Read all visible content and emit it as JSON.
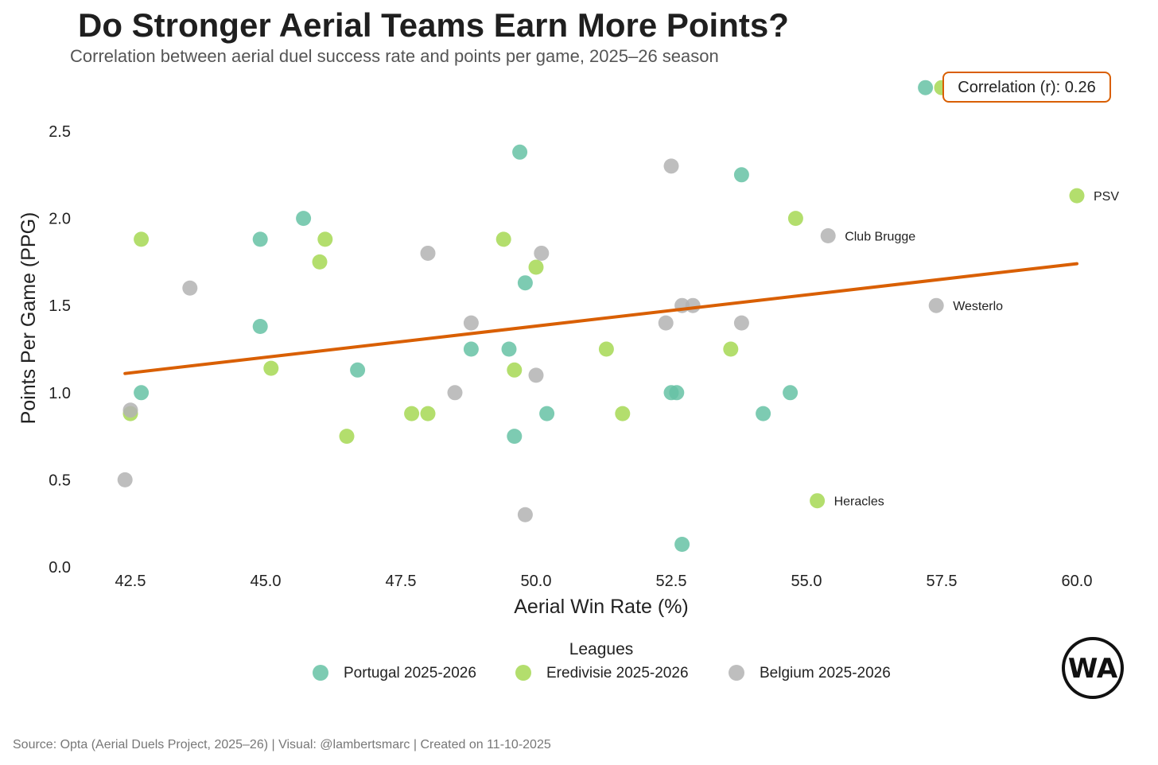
{
  "title": "Do Stronger Aerial Teams Earn More Points?",
  "subtitle": "Correlation between aerial duel success rate and points per game, 2025–26 season",
  "source": "Source: Opta (Aerial Duels Project, 2025–26) | Visual: @lambertsmarc | Created on 11-10-2025",
  "logo_text": "WA",
  "colors": {
    "portugal": "#66c2a5",
    "eredivisie": "#a6d854",
    "belgium": "#b3b3b3",
    "trend": "#d95f02",
    "annotation_border": "#d95f02"
  },
  "chart_data": {
    "type": "scatter",
    "xlabel": "Aerial Win Rate (%)",
    "ylabel": "Points Per Game (PPG)",
    "xlim": [
      41.5,
      60.8
    ],
    "ylim": [
      0.0,
      2.85
    ],
    "xticks": [
      "42.5",
      "45.0",
      "47.5",
      "50.0",
      "52.5",
      "55.0",
      "57.5",
      "60.0"
    ],
    "yticks": [
      "0.0",
      "0.5",
      "1.0",
      "1.5",
      "2.0",
      "2.5"
    ],
    "grid": false,
    "legend": {
      "title": "Leagues",
      "position": "bottom-center"
    },
    "annotation": "Correlation (r): 0.26",
    "trendline": {
      "x": [
        42.4,
        60.0
      ],
      "y": [
        1.11,
        1.74
      ]
    },
    "series": [
      {
        "name": "Portugal 2025-2026",
        "color": "#66c2a5",
        "points": [
          {
            "x": 42.7,
            "y": 1.0
          },
          {
            "x": 44.9,
            "y": 1.88
          },
          {
            "x": 44.9,
            "y": 1.38
          },
          {
            "x": 45.7,
            "y": 2.0
          },
          {
            "x": 46.7,
            "y": 1.13
          },
          {
            "x": 48.8,
            "y": 1.25
          },
          {
            "x": 49.5,
            "y": 1.25
          },
          {
            "x": 49.6,
            "y": 0.75
          },
          {
            "x": 49.7,
            "y": 2.38
          },
          {
            "x": 49.8,
            "y": 1.63
          },
          {
            "x": 50.2,
            "y": 0.88
          },
          {
            "x": 52.5,
            "y": 1.0
          },
          {
            "x": 52.6,
            "y": 1.0
          },
          {
            "x": 52.7,
            "y": 0.13
          },
          {
            "x": 53.8,
            "y": 2.25
          },
          {
            "x": 54.2,
            "y": 0.88
          },
          {
            "x": 54.7,
            "y": 1.0
          },
          {
            "x": 57.2,
            "y": 2.75
          }
        ]
      },
      {
        "name": "Eredivisie 2025-2026",
        "color": "#a6d854",
        "points": [
          {
            "x": 42.5,
            "y": 0.88
          },
          {
            "x": 42.7,
            "y": 1.88
          },
          {
            "x": 45.1,
            "y": 1.14
          },
          {
            "x": 46.0,
            "y": 1.75
          },
          {
            "x": 46.1,
            "y": 1.88
          },
          {
            "x": 46.5,
            "y": 0.75
          },
          {
            "x": 47.7,
            "y": 0.88
          },
          {
            "x": 48.0,
            "y": 0.88
          },
          {
            "x": 49.4,
            "y": 1.88
          },
          {
            "x": 49.6,
            "y": 1.13
          },
          {
            "x": 50.0,
            "y": 1.72
          },
          {
            "x": 51.3,
            "y": 1.25
          },
          {
            "x": 51.6,
            "y": 0.88
          },
          {
            "x": 53.6,
            "y": 1.25
          },
          {
            "x": 54.8,
            "y": 2.0
          },
          {
            "x": 55.2,
            "y": 0.38,
            "label": "Heracles"
          },
          {
            "x": 57.5,
            "y": 2.75
          },
          {
            "x": 60.0,
            "y": 2.13,
            "label": "PSV"
          }
        ]
      },
      {
        "name": "Belgium 2025-2026",
        "color": "#b3b3b3",
        "points": [
          {
            "x": 42.4,
            "y": 0.5
          },
          {
            "x": 42.5,
            "y": 0.9
          },
          {
            "x": 43.6,
            "y": 1.6
          },
          {
            "x": 48.0,
            "y": 1.8
          },
          {
            "x": 48.5,
            "y": 1.0
          },
          {
            "x": 48.8,
            "y": 1.4
          },
          {
            "x": 49.8,
            "y": 0.3
          },
          {
            "x": 50.0,
            "y": 1.1
          },
          {
            "x": 50.1,
            "y": 1.8
          },
          {
            "x": 52.4,
            "y": 1.4
          },
          {
            "x": 52.5,
            "y": 2.3
          },
          {
            "x": 52.7,
            "y": 1.5
          },
          {
            "x": 52.9,
            "y": 1.5
          },
          {
            "x": 53.8,
            "y": 1.4
          },
          {
            "x": 55.4,
            "y": 1.9,
            "label": "Club Brugge"
          },
          {
            "x": 57.4,
            "y": 1.5,
            "label": "Westerlo"
          }
        ]
      }
    ]
  }
}
